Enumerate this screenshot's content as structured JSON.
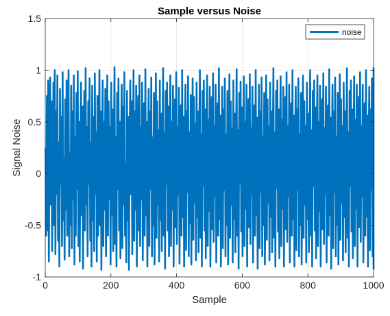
{
  "chart_data": {
    "type": "line",
    "title": "Sample versus Noise",
    "xlabel": "Sample",
    "ylabel": "Signal Noise",
    "xlim": [
      0,
      1000
    ],
    "ylim": [
      -1,
      1.5
    ],
    "xticks": [
      0,
      200,
      400,
      600,
      800,
      1000
    ],
    "xtick_labels": [
      "0",
      "200",
      "400",
      "600",
      "800",
      "1000"
    ],
    "yticks": [
      -1,
      -0.5,
      0,
      0.5,
      1,
      1.5
    ],
    "ytick_labels": [
      "-1",
      "-0.5",
      "0",
      "0.5",
      "1",
      "1.5"
    ],
    "grid": true,
    "legend_position": "top-right",
    "series": [
      {
        "name": "noise",
        "color": "#0072BD",
        "x_start": 1,
        "x_step": 2,
        "values": [
          0.25,
          -0.6,
          0.75,
          -0.55,
          0.9,
          -0.85,
          0.4,
          0.93,
          -0.3,
          0.7,
          -0.75,
          0.05,
          0.88,
          -0.5,
          1.0,
          -0.78,
          0.6,
          -0.2,
          0.95,
          -0.65,
          0.3,
          -0.9,
          0.82,
          -0.1,
          0.55,
          -0.7,
          0.98,
          -0.45,
          0.15,
          -0.83,
          0.72,
          -0.35,
          0.9,
          -0.6,
          0.45,
          1.0,
          -0.8,
          0.2,
          -0.5,
          0.85,
          -0.72,
          0.6,
          -0.25,
          0.95,
          -0.88,
          0.35,
          -0.6,
          0.78,
          -0.15,
          0.99,
          -0.7,
          0.5,
          -0.85,
          0.25,
          0.88,
          -0.4,
          0.65,
          -0.92,
          0.1,
          0.8,
          -0.55,
          1.02,
          -0.3,
          0.45,
          -0.8,
          0.7,
          -0.1,
          0.92,
          -0.65,
          0.3,
          -0.9,
          0.85,
          -0.45,
          0.55,
          -0.75,
          0.97,
          -0.2,
          0.4,
          -0.85,
          0.75,
          -0.6,
          0.15,
          1.0,
          -0.5,
          0.6,
          -0.93,
          0.28,
          0.9,
          -0.7,
          0.5,
          -0.35,
          0.82,
          -0.8,
          0.05,
          0.95,
          -0.6,
          0.7,
          -0.25,
          0.45,
          -0.88,
          0.88,
          -0.4,
          0.62,
          -0.75,
          0.2,
          1.03,
          -0.68,
          0.35,
          -0.9,
          0.78,
          -0.15,
          0.92,
          -0.55,
          0.5,
          -0.82,
          0.3,
          0.86,
          -0.72,
          0.65,
          -0.3,
          0.98,
          -0.6,
          0.1,
          -0.86,
          0.8,
          -0.45,
          0.55,
          -0.93,
          0.4,
          0.9,
          -0.2,
          0.7,
          -0.78,
          0.25,
          1.0,
          -0.65,
          0.6,
          -0.35,
          0.85,
          -0.9,
          0.15,
          0.75,
          -0.55,
          0.95,
          -0.7,
          0.45,
          -0.25,
          0.88,
          -0.84,
          0.3,
          0.68,
          -0.6,
          1.01,
          -0.4,
          0.5,
          -0.9,
          0.2,
          0.82,
          -0.7,
          0.6,
          -0.15,
          0.93,
          -0.8,
          0.35,
          -0.5,
          0.78,
          -0.88,
          0.05,
          0.97,
          -0.62,
          0.7,
          -0.3,
          0.42,
          -0.85,
          0.9,
          -0.45,
          0.58,
          -0.75,
          0.25,
          1.02,
          -0.6,
          0.4,
          -0.92,
          0.8,
          -0.1,
          0.88,
          -0.55,
          0.65,
          -0.8,
          0.3,
          0.95,
          -0.7,
          0.5,
          -0.35,
          0.85,
          -0.9,
          0.18,
          0.72,
          -0.52,
          0.98,
          -0.68,
          0.45,
          -0.2,
          0.83,
          -0.87,
          0.35,
          0.66,
          -0.6,
          1.0,
          -0.42,
          0.55,
          -0.9,
          0.22,
          0.86,
          -0.74,
          0.6,
          -0.18,
          0.94,
          -0.8,
          0.4,
          -0.48,
          0.76,
          -0.88,
          0.1,
          0.92,
          -0.64,
          0.74,
          -0.28,
          0.48,
          -0.84,
          0.88,
          -0.42,
          0.6,
          -0.76,
          0.28,
          1.0,
          -0.62,
          0.38,
          -0.9,
          0.8,
          -0.12,
          0.9,
          -0.55,
          0.62,
          -0.82,
          0.3,
          0.95,
          -0.7,
          0.52,
          -0.36,
          0.84,
          -0.9,
          0.16,
          0.74,
          -0.54,
          0.97,
          -0.66,
          0.46,
          -0.22,
          0.86,
          -0.86,
          0.34,
          0.68,
          -0.6,
          1.02,
          -0.44,
          0.56,
          -0.9,
          0.24,
          0.84,
          -0.72,
          0.62,
          -0.16,
          0.92,
          -0.8,
          0.38,
          -0.5,
          0.8,
          -0.88,
          0.08,
          0.96,
          -0.62,
          0.7,
          -0.3,
          0.44,
          -0.86,
          0.9,
          -0.44,
          0.58,
          -0.76,
          0.26,
          1.01,
          -0.6,
          0.42,
          -0.92,
          0.78,
          -0.1,
          0.89,
          -0.56,
          0.64,
          -0.8,
          0.32,
          0.94,
          -0.7,
          0.5,
          -0.34,
          0.86,
          -0.9,
          0.2,
          0.72,
          -0.52,
          0.96,
          -0.68,
          0.44,
          -0.2,
          0.84,
          -0.86,
          0.36,
          0.66,
          -0.6,
          1.0,
          -0.4,
          0.54,
          -0.92,
          0.22,
          0.86,
          -0.72,
          0.6,
          -0.18,
          0.93,
          -0.8,
          0.36,
          -0.5,
          0.78,
          -0.88,
          0.12,
          0.95,
          -0.64,
          0.72,
          -0.28,
          0.46,
          -0.84,
          0.88,
          -0.42,
          0.6,
          -0.76,
          0.3,
          1.02,
          -0.62,
          0.4,
          -0.9,
          0.8,
          -0.14,
          0.9,
          -0.56,
          0.62,
          -0.82,
          0.28,
          0.94,
          -0.7,
          0.52,
          -0.34,
          0.84,
          -0.9,
          0.18,
          0.74,
          -0.54,
          0.98,
          -0.66,
          0.46,
          -0.22,
          0.86,
          -0.86,
          0.34,
          0.68,
          -0.6,
          1.0,
          -0.44,
          0.56,
          -0.9,
          0.24,
          0.84,
          -0.74,
          0.62,
          -0.16,
          0.92,
          -0.8,
          0.38,
          -0.5,
          0.78,
          -0.88,
          0.1,
          0.95,
          -0.62,
          0.7,
          -0.3,
          0.46,
          -0.86,
          0.88,
          -0.44,
          0.58,
          -0.76,
          0.26,
          1.0,
          -0.6,
          0.42,
          -0.9,
          0.8,
          -0.12,
          0.9,
          -0.55,
          0.64,
          -0.82,
          0.3,
          0.95,
          -0.7,
          0.5,
          -0.36,
          0.85,
          -0.9,
          0.2,
          0.72,
          -0.54,
          0.97,
          -0.68,
          0.44,
          -0.2,
          0.84,
          -0.86,
          0.36,
          0.66,
          -0.6,
          1.01,
          -0.4,
          0.54,
          -0.92,
          0.22,
          0.86,
          -0.72,
          0.6,
          -0.18,
          0.93,
          -0.8,
          0.36,
          -0.5,
          0.78,
          -0.88,
          0.1,
          0.96,
          -0.64,
          0.72,
          -0.28,
          0.46,
          -0.84,
          0.88,
          -0.42,
          0.6,
          -0.76,
          0.28,
          1.02,
          -0.62,
          0.4,
          -0.9,
          0.8,
          -0.12,
          0.9,
          -0.56,
          0.62,
          -0.82,
          0.3,
          0.94,
          -0.7,
          0.52,
          -0.34,
          0.86,
          -0.9,
          0.18,
          0.74,
          -0.52,
          0.98,
          -0.66,
          0.46,
          -0.22,
          0.86,
          -0.86,
          0.34,
          0.68,
          -0.6,
          1.0,
          -0.42,
          0.56,
          -0.9,
          0.24,
          0.84,
          -0.74,
          0.62,
          -0.16,
          0.92,
          -0.8,
          0.38,
          -0.5,
          0.8,
          -0.88,
          0.1,
          0.95,
          -0.62,
          0.7,
          -0.3,
          0.44,
          -0.86,
          0.9,
          -0.44,
          0.58,
          -0.76,
          0.26,
          1.0,
          -0.6,
          0.42,
          -0.9,
          0.78,
          -0.1,
          0.89,
          -0.56,
          0.64,
          -0.8,
          0.32,
          0.94,
          -0.7,
          0.5,
          -0.34,
          0.86,
          -0.9,
          0.2,
          0.72,
          -0.52,
          0.96,
          -0.68,
          0.44,
          -0.2,
          0.84,
          -0.86,
          0.36,
          0.66,
          -0.6,
          1.02,
          -0.4,
          0.54,
          -0.92,
          0.22,
          0.86,
          -0.72,
          0.6,
          -0.18,
          0.93,
          -0.8,
          0.36,
          -0.5,
          0.78,
          -0.88,
          0.12,
          0.95,
          -0.64,
          0.72,
          -0.28,
          0.46,
          -0.84,
          0.88,
          -0.42,
          0.6,
          -0.76,
          0.3,
          1.0,
          -0.62,
          0.4,
          -0.9,
          0.8,
          -0.14,
          0.9,
          -0.56,
          0.62,
          -0.82,
          0.28,
          0.94,
          -0.7,
          0.52,
          -0.34,
          0.84,
          -0.9,
          0.18,
          0.74,
          -0.54,
          0.97,
          -0.66,
          0.46,
          -0.22,
          0.86,
          -0.86,
          0.34,
          0.68,
          -0.6,
          1.0,
          -0.44,
          0.56,
          -0.9,
          0.24,
          0.84,
          -0.74,
          0.62,
          -0.16,
          0.92,
          -0.8,
          0.38,
          -0.5,
          0.78,
          -0.88,
          0.1,
          0.95,
          -0.62,
          0.7,
          -0.3,
          0.46,
          -0.86,
          0.88,
          -0.44,
          0.58,
          -0.76,
          0.26,
          1.01,
          -0.6,
          0.42,
          -0.9,
          0.8,
          -0.12,
          0.9,
          -0.55,
          0.64,
          -0.82,
          0.3,
          0.95,
          -0.7,
          0.5,
          -0.36,
          0.85,
          -0.9,
          0.2,
          0.72,
          -0.54,
          0.97,
          -0.68,
          0.44,
          -0.2,
          0.84,
          -0.86,
          0.36,
          0.66,
          -0.6,
          1.0,
          -0.4,
          0.54,
          -0.92,
          0.22,
          0.86,
          -0.72,
          0.6,
          -0.18,
          0.93,
          -0.8,
          0.36,
          -0.5,
          0.76,
          -0.88,
          0.7
        ]
      }
    ]
  }
}
